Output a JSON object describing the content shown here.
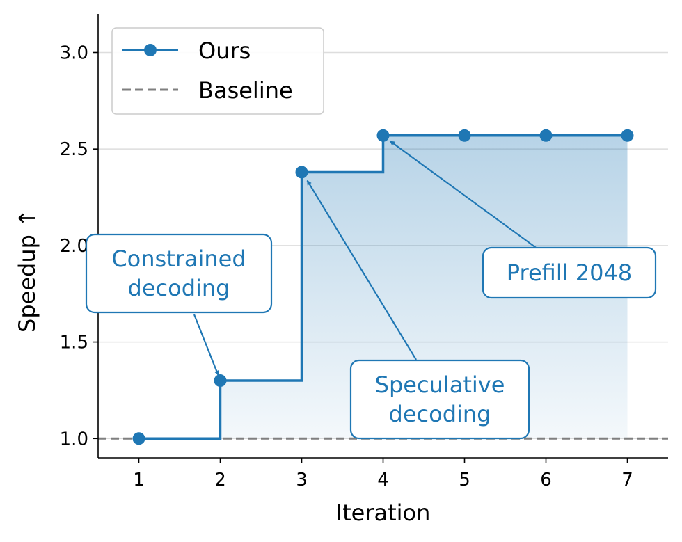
{
  "chart_data": {
    "type": "line",
    "step": "post",
    "xlabel": "Iteration",
    "ylabel": "Speedup ↑",
    "xlim": [
      0.5,
      7.5
    ],
    "ylim": [
      0.9,
      3.2
    ],
    "xticks": [
      1,
      2,
      3,
      4,
      5,
      6,
      7
    ],
    "yticks": [
      1.0,
      1.5,
      2.0,
      2.5,
      3.0
    ],
    "ytick_labels": [
      "1.0",
      "1.5",
      "2.0",
      "2.5",
      "3.0"
    ],
    "grid": "y",
    "legend": "top-left",
    "series": [
      {
        "name": "Ours",
        "style": "solid-step-markers",
        "color": "#1f77b4",
        "x": [
          1,
          2,
          3,
          4,
          5,
          6,
          7
        ],
        "y": [
          1.0,
          1.3,
          2.38,
          2.57,
          2.57,
          2.57,
          2.57
        ]
      },
      {
        "name": "Baseline",
        "style": "dashed",
        "color": "#7f7f7f",
        "y": 1.0
      }
    ],
    "annotations": [
      {
        "lines": [
          "Constrained",
          "decoding"
        ],
        "target": [
          2,
          1.3
        ]
      },
      {
        "lines": [
          "Speculative",
          "decoding"
        ],
        "target": [
          3,
          2.38
        ]
      },
      {
        "lines": [
          "Prefill 2048"
        ],
        "target": [
          4,
          2.57
        ]
      }
    ]
  }
}
